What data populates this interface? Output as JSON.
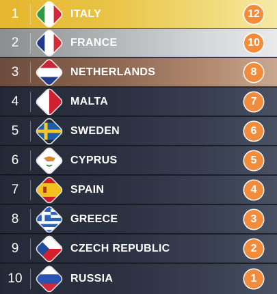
{
  "scoreboard": {
    "rows": [
      {
        "rank": "1",
        "country": "ITALY",
        "points": "12",
        "flag_icon": "italy-flag-icon"
      },
      {
        "rank": "2",
        "country": "FRANCE",
        "points": "10",
        "flag_icon": "france-flag-icon"
      },
      {
        "rank": "3",
        "country": "NETHERLANDS",
        "points": "8",
        "flag_icon": "netherlands-flag-icon"
      },
      {
        "rank": "4",
        "country": "MALTA",
        "points": "7",
        "flag_icon": "malta-flag-icon"
      },
      {
        "rank": "5",
        "country": "SWEDEN",
        "points": "6",
        "flag_icon": "sweden-flag-icon"
      },
      {
        "rank": "6",
        "country": "CYPRUS",
        "points": "5",
        "flag_icon": "cyprus-flag-icon"
      },
      {
        "rank": "7",
        "country": "SPAIN",
        "points": "4",
        "flag_icon": "spain-flag-icon"
      },
      {
        "rank": "8",
        "country": "GREECE",
        "points": "3",
        "flag_icon": "greece-flag-icon"
      },
      {
        "rank": "9",
        "country": "CZECH REPUBLIC",
        "points": "2",
        "flag_icon": "czech-flag-icon"
      },
      {
        "rank": "10",
        "country": "RUSSIA",
        "points": "1",
        "flag_icon": "russia-flag-icon"
      }
    ]
  },
  "colors": {
    "points_badge": "#f08c3c",
    "gold_row": "#e6b62e",
    "silver_row": "#b4b5b6",
    "bronze_row": "#8c6651",
    "default_row": "#2c3242"
  }
}
